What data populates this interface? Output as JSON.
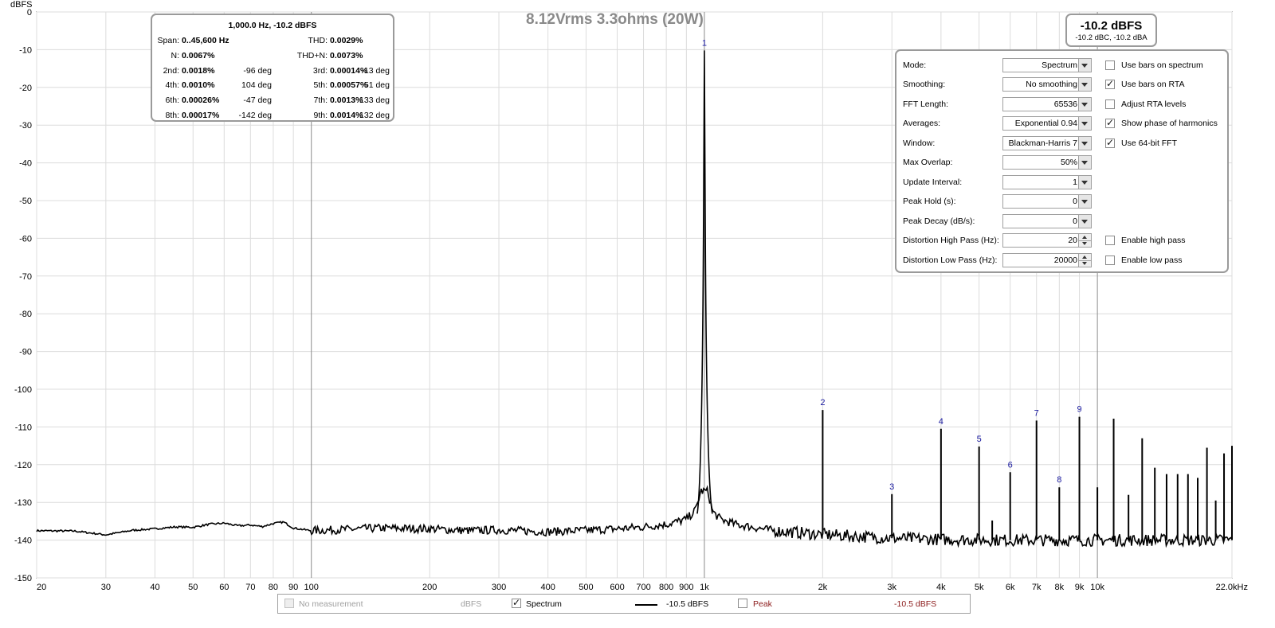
{
  "title": "8.12Vrms 3.3ohms (20W)",
  "chart_data": {
    "type": "line",
    "title": "8.12Vrms 3.3ohms (20W)",
    "ylabel": "dBFS",
    "xlabel": "",
    "xscale": "log",
    "xlim": [
      20,
      22000
    ],
    "ylim": [
      -150,
      0
    ],
    "grid": true,
    "x_ticks": [
      {
        "v": 20,
        "label": "20"
      },
      {
        "v": 30,
        "label": "30"
      },
      {
        "v": 40,
        "label": "40"
      },
      {
        "v": 50,
        "label": "50"
      },
      {
        "v": 60,
        "label": "60"
      },
      {
        "v": 70,
        "label": "70"
      },
      {
        "v": 80,
        "label": "80"
      },
      {
        "v": 90,
        "label": "90"
      },
      {
        "v": 100,
        "label": "100"
      },
      {
        "v": 200,
        "label": "200"
      },
      {
        "v": 300,
        "label": "300"
      },
      {
        "v": 400,
        "label": "400"
      },
      {
        "v": 500,
        "label": "500"
      },
      {
        "v": 600,
        "label": "600"
      },
      {
        "v": 700,
        "label": "700"
      },
      {
        "v": 800,
        "label": "800"
      },
      {
        "v": 900,
        "label": "900"
      },
      {
        "v": 1000,
        "label": "1k"
      },
      {
        "v": 2000,
        "label": "2k"
      },
      {
        "v": 3000,
        "label": "3k"
      },
      {
        "v": 4000,
        "label": "4k"
      },
      {
        "v": 5000,
        "label": "5k"
      },
      {
        "v": 6000,
        "label": "6k"
      },
      {
        "v": 7000,
        "label": "7k"
      },
      {
        "v": 8000,
        "label": "8k"
      },
      {
        "v": 9000,
        "label": "9k"
      },
      {
        "v": 10000,
        "label": "10k"
      },
      {
        "v": 22000,
        "label": "22.0kHz"
      }
    ],
    "y_ticks": [
      {
        "v": 0,
        "label": "0"
      },
      {
        "v": -10,
        "label": "-10"
      },
      {
        "v": -20,
        "label": "-20"
      },
      {
        "v": -30,
        "label": "-30"
      },
      {
        "v": -40,
        "label": "-40"
      },
      {
        "v": -50,
        "label": "-50"
      },
      {
        "v": -60,
        "label": "-60"
      },
      {
        "v": -70,
        "label": "-70"
      },
      {
        "v": -80,
        "label": "-80"
      },
      {
        "v": -90,
        "label": "-90"
      },
      {
        "v": -100,
        "label": "-100"
      },
      {
        "v": -110,
        "label": "-110"
      },
      {
        "v": -120,
        "label": "-120"
      },
      {
        "v": -130,
        "label": "-130"
      },
      {
        "v": -140,
        "label": "-140"
      },
      {
        "v": -150,
        "label": "-150"
      }
    ],
    "floor": [
      [
        20,
        -137.5
      ],
      [
        25,
        -137.6
      ],
      [
        30,
        -138.6
      ],
      [
        35,
        -137.4
      ],
      [
        40,
        -137.0
      ],
      [
        45,
        -136.5
      ],
      [
        50,
        -136.6
      ],
      [
        55,
        -135.8
      ],
      [
        60,
        -135.5
      ],
      [
        65,
        -136.2
      ],
      [
        70,
        -136.0
      ],
      [
        75,
        -136.4
      ],
      [
        80,
        -135.6
      ],
      [
        85,
        -135.2
      ],
      [
        90,
        -136.8
      ],
      [
        100,
        -137.5
      ],
      [
        120,
        -137.2
      ],
      [
        150,
        -136.8
      ],
      [
        200,
        -137.0
      ],
      [
        250,
        -137.5
      ],
      [
        300,
        -137.3
      ],
      [
        400,
        -137.8
      ],
      [
        500,
        -137.4
      ],
      [
        600,
        -137.0
      ],
      [
        700,
        -136.5
      ],
      [
        800,
        -135.8
      ],
      [
        900,
        -134.5
      ],
      [
        950,
        -132.0
      ],
      [
        980,
        -127.0
      ],
      [
        1020,
        -127.0
      ],
      [
        1050,
        -132.5
      ],
      [
        1100,
        -134.5
      ],
      [
        1200,
        -135.8
      ],
      [
        1500,
        -137.5
      ],
      [
        2000,
        -138.5
      ],
      [
        3000,
        -139.5
      ],
      [
        4000,
        -139.8
      ],
      [
        6000,
        -140.0
      ],
      [
        10000,
        -140.0
      ],
      [
        22000,
        -140.0
      ]
    ],
    "peaks": [
      {
        "x": 1000,
        "y": -10.2,
        "label": "1"
      },
      {
        "x": 2000,
        "y": -105.5,
        "label": "2"
      },
      {
        "x": 3000,
        "y": -127.8,
        "label": "3"
      },
      {
        "x": 4000,
        "y": -110.5,
        "label": "4"
      },
      {
        "x": 5000,
        "y": -115.2,
        "label": "5"
      },
      {
        "x": 6000,
        "y": -122.0,
        "label": "6"
      },
      {
        "x": 7000,
        "y": -108.3,
        "label": "7"
      },
      {
        "x": 8000,
        "y": -126.0,
        "label": "8"
      },
      {
        "x": 9000,
        "y": -107.3,
        "label": "9"
      }
    ],
    "spurs": [
      {
        "x": 5400,
        "y": -134.8
      },
      {
        "x": 10000,
        "y": -126.0
      },
      {
        "x": 11000,
        "y": -107.8
      },
      {
        "x": 12000,
        "y": -128.0
      },
      {
        "x": 13000,
        "y": -113.0
      },
      {
        "x": 14000,
        "y": -120.8
      },
      {
        "x": 15000,
        "y": -122.5
      },
      {
        "x": 16000,
        "y": -122.5
      },
      {
        "x": 17000,
        "y": -122.5
      },
      {
        "x": 18000,
        "y": -123.5
      },
      {
        "x": 19000,
        "y": -115.5
      },
      {
        "x": 20000,
        "y": -129.5
      },
      {
        "x": 21000,
        "y": -117.0
      },
      {
        "x": 22000,
        "y": -115.0
      }
    ]
  },
  "distortion": {
    "header": "1,000.0 Hz, -10.2 dBFS",
    "span_label": "Span:",
    "span_value": "0..45,600 Hz",
    "thd_label": "THD:",
    "thd_value": "0.0029%",
    "n_label": "N:",
    "n_value": "0.0067%",
    "thdn_label": "THD+N:",
    "thdn_value": "0.0073%",
    "harmonics": [
      {
        "label": "2nd:",
        "value": "0.0018%",
        "phase": "-96 deg"
      },
      {
        "label": "3rd:",
        "value": "0.00014%",
        "phase": "-13 deg"
      },
      {
        "label": "4th:",
        "value": "0.0010%",
        "phase": "104 deg"
      },
      {
        "label": "5th:",
        "value": "0.00057%",
        "phase": "51 deg"
      },
      {
        "label": "6th:",
        "value": "0.00026%",
        "phase": "-47 deg"
      },
      {
        "label": "7th:",
        "value": "0.0013%",
        "phase": "133 deg"
      },
      {
        "label": "8th:",
        "value": "0.00017%",
        "phase": "-142 deg"
      },
      {
        "label": "9th:",
        "value": "0.0014%",
        "phase": "132 deg"
      }
    ]
  },
  "level": {
    "main": "-10.2 dBFS",
    "sub": "-10.2 dBC, -10.2 dBA"
  },
  "controls": {
    "mode": {
      "label": "Mode:",
      "value": "Spectrum"
    },
    "smoothing": {
      "label": "Smoothing:",
      "value": "No  smoothing"
    },
    "fft_length": {
      "label": "FFT Length:",
      "value": "65536"
    },
    "averages": {
      "label": "Averages:",
      "value": "Exponential 0.94"
    },
    "window": {
      "label": "Window:",
      "value": "Blackman-Harris 7"
    },
    "max_overlap": {
      "label": "Max Overlap:",
      "value": "50%"
    },
    "update_interval": {
      "label": "Update Interval:",
      "value": "1"
    },
    "peak_hold": {
      "label": "Peak Hold (s):",
      "value": "0"
    },
    "peak_decay": {
      "label": "Peak Decay (dB/s):",
      "value": "0"
    },
    "dist_high_pass": {
      "label": "Distortion High Pass (Hz):",
      "value": "20"
    },
    "dist_low_pass": {
      "label": "Distortion Low Pass (Hz):",
      "value": "20000"
    },
    "use_bars_spectrum": {
      "label": "Use bars on spectrum",
      "checked": false
    },
    "use_bars_rta": {
      "label": "Use bars on RTA",
      "checked": true
    },
    "adjust_rta": {
      "label": "Adjust RTA levels",
      "checked": false
    },
    "show_phase": {
      "label": "Show phase of harmonics",
      "checked": true
    },
    "use_64bit": {
      "label": "Use 64-bit FFT",
      "checked": true
    },
    "enable_high_pass": {
      "label": "Enable high pass",
      "checked": false
    },
    "enable_low_pass": {
      "label": "Enable low pass",
      "checked": false
    }
  },
  "legend": {
    "no_measurement": "No measurement",
    "no_measurement_unit": "dBFS",
    "spectrum": "Spectrum",
    "spectrum_value": "-10.5 dBFS",
    "peak": "Peak",
    "peak_value": "-10.5 dBFS",
    "peak_color": "#8b1a1a",
    "disabled_color": "#a0a0a0"
  }
}
